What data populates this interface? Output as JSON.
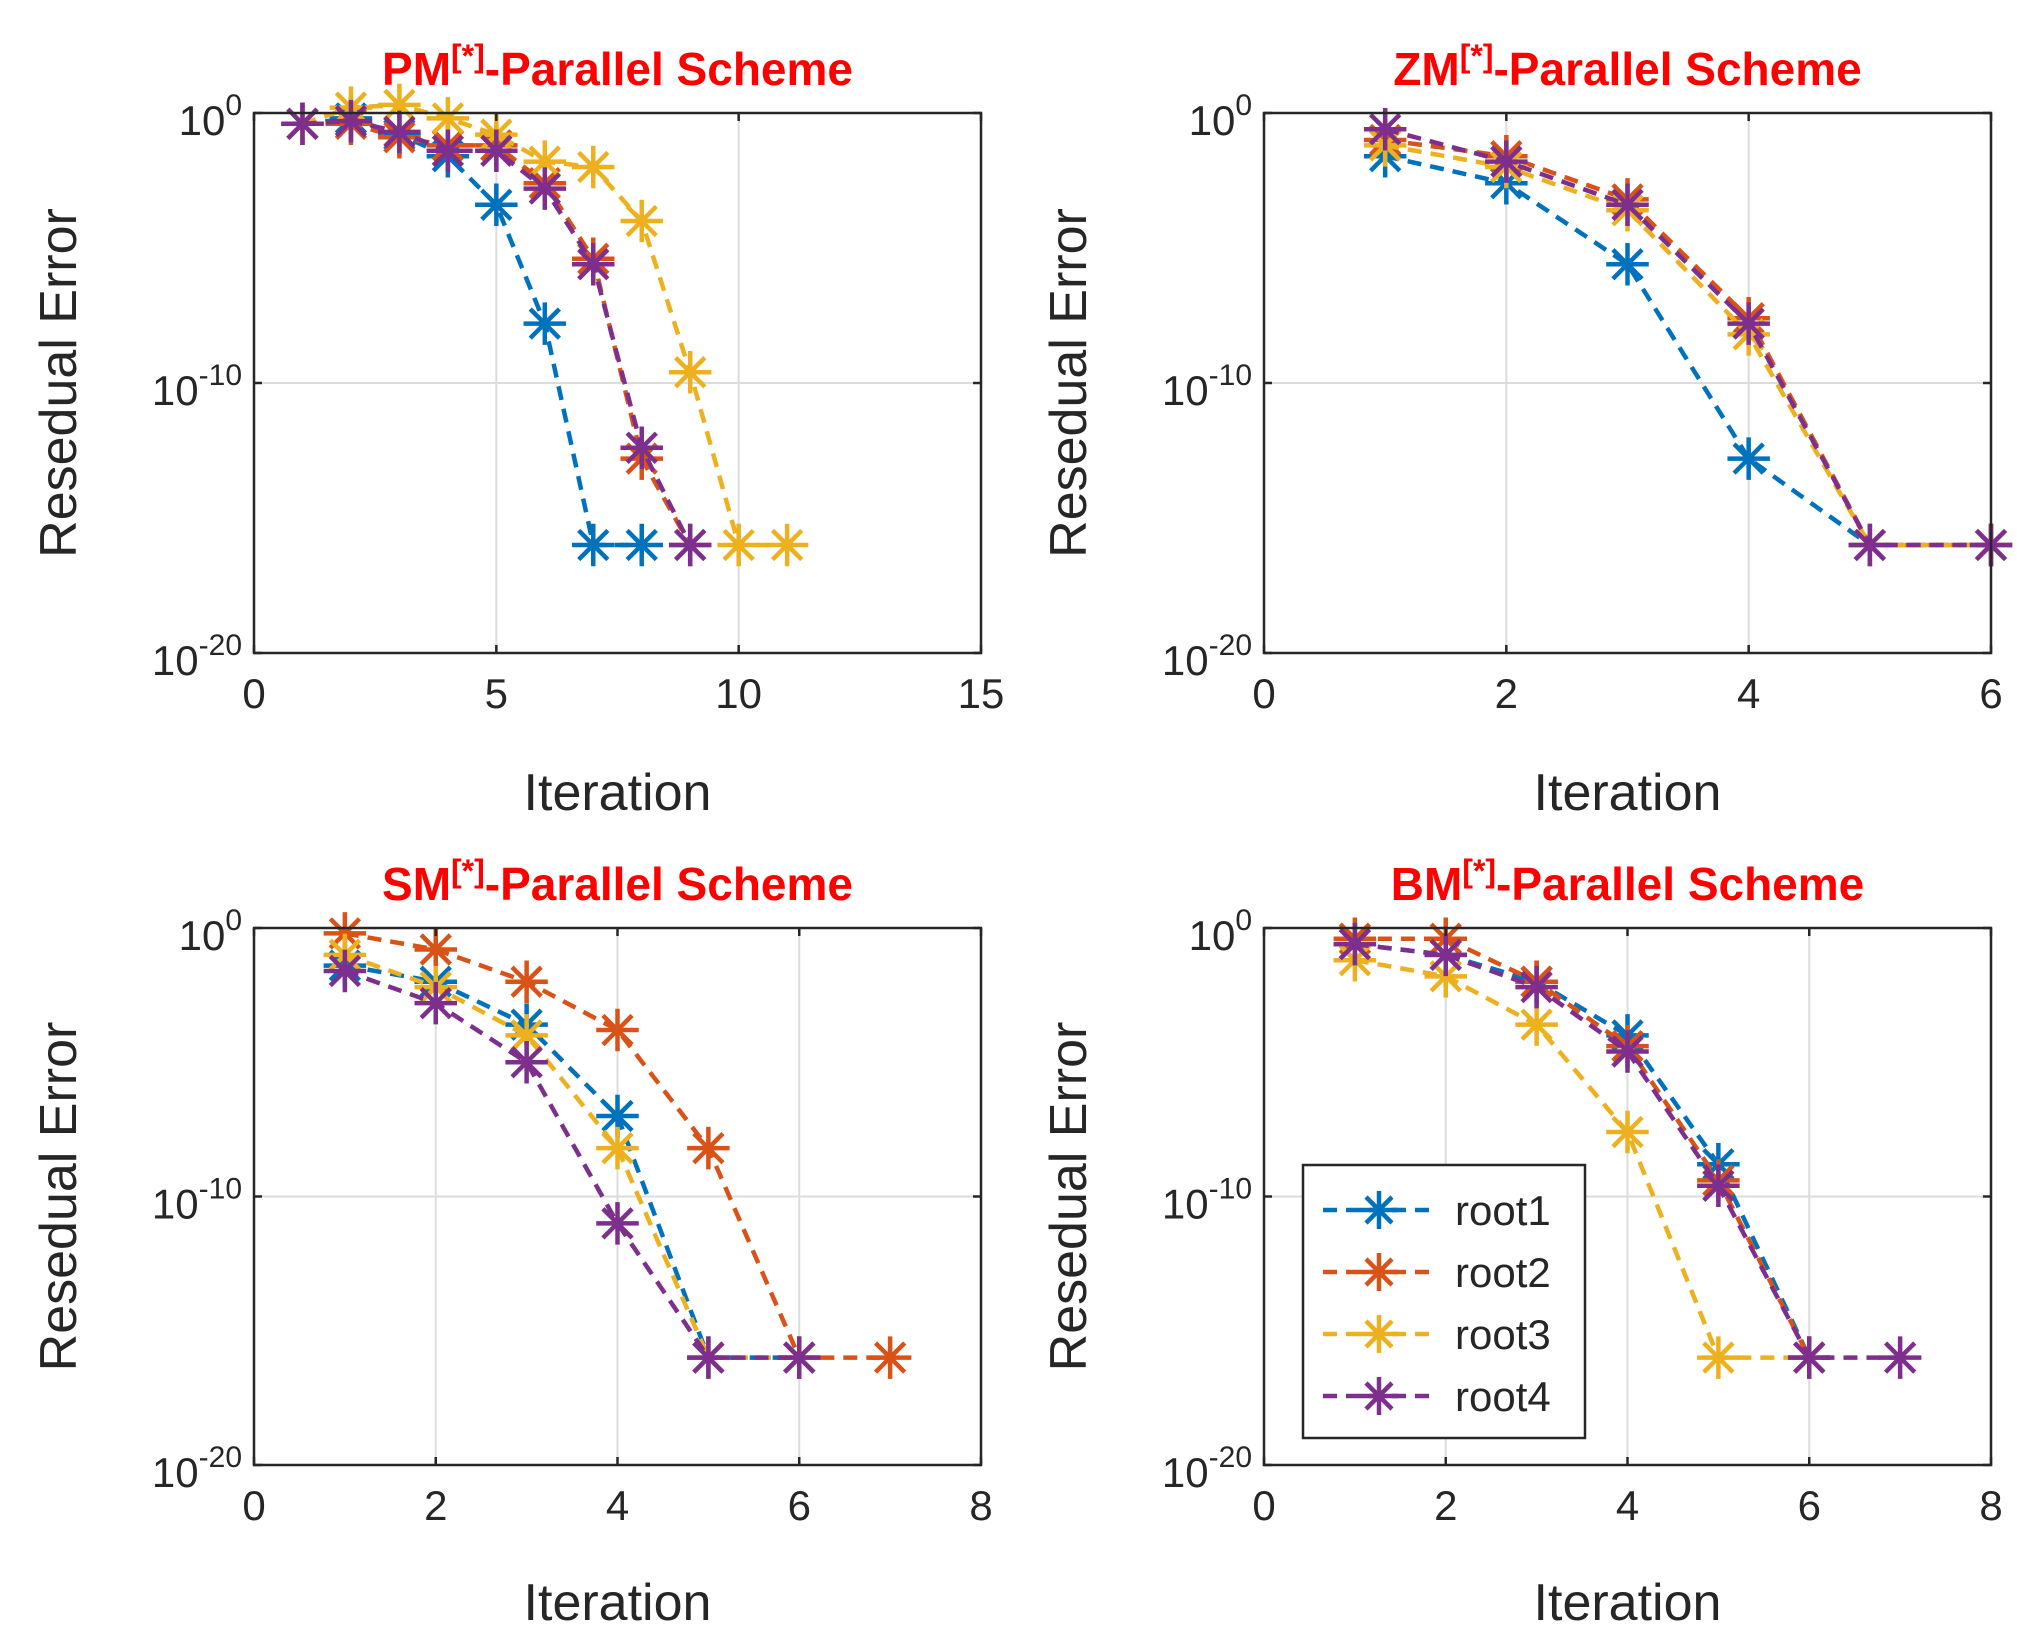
{
  "figure": {
    "title_color": "#ff0000",
    "series_colors": {
      "root1": "#0072BD",
      "root2": "#D95319",
      "root3": "#EDB120",
      "root4": "#7E2F8E"
    }
  },
  "chart_data": [
    {
      "type": "line",
      "id": "pm",
      "title_main": "PM",
      "title_sup": "[*]",
      "title_rest": "-Parallel Scheme",
      "xlabel": "Iteration",
      "ylabel": "Resedual Error",
      "yscale": "log",
      "xlim": [
        0,
        15
      ],
      "ylim_exp": [
        -20,
        0
      ],
      "xticks": [
        0,
        5,
        10,
        15
      ],
      "xtick_labels": [
        "0",
        "5",
        "10",
        "15"
      ],
      "yticks_exp": [
        0,
        -10,
        -20
      ],
      "ytick_base": "10",
      "ytick_exponents": [
        "0",
        "-10",
        "-20"
      ],
      "grid": true,
      "series": [
        {
          "name": "root1",
          "x": [
            1,
            2,
            3,
            4,
            5,
            6,
            7,
            8
          ],
          "log10_y": [
            -0.4,
            -0.2,
            -0.8,
            -1.6,
            -3.4,
            -7.8,
            -16,
            -16
          ]
        },
        {
          "name": "root2",
          "x": [
            1,
            2,
            3,
            4,
            5,
            6,
            7,
            8,
            9
          ],
          "log10_y": [
            -0.4,
            -0.4,
            -0.9,
            -1.2,
            -1.2,
            -2.6,
            -5.4,
            -12.8,
            -16
          ]
        },
        {
          "name": "root3",
          "x": [
            1,
            2,
            3,
            4,
            5,
            6,
            7,
            8,
            9,
            10,
            11
          ],
          "log10_y": [
            -0.4,
            0.2,
            0.3,
            -0.2,
            -0.8,
            -1.8,
            -2.0,
            -4.0,
            -9.6,
            -16,
            -16
          ]
        },
        {
          "name": "root4",
          "x": [
            1,
            2,
            3,
            4,
            5,
            6,
            7,
            8,
            9
          ],
          "log10_y": [
            -0.4,
            -0.3,
            -0.7,
            -1.4,
            -1.4,
            -2.8,
            -5.6,
            -12.4,
            -16
          ]
        }
      ]
    },
    {
      "type": "line",
      "id": "zm",
      "title_main": "ZM",
      "title_sup": "[*]",
      "title_rest": "-Parallel Scheme",
      "xlabel": "Iteration",
      "ylabel": "Resedual Error",
      "yscale": "log",
      "xlim": [
        0,
        6
      ],
      "ylim_exp": [
        -20,
        0
      ],
      "xticks": [
        0,
        2,
        4,
        6
      ],
      "xtick_labels": [
        "0",
        "2",
        "4",
        "6"
      ],
      "yticks_exp": [
        0,
        -10,
        -20
      ],
      "ytick_base": "10",
      "ytick_exponents": [
        "0",
        "-10",
        "-20"
      ],
      "grid": true,
      "series": [
        {
          "name": "root1",
          "x": [
            1,
            2,
            3,
            4,
            5,
            6
          ],
          "log10_y": [
            -1.6,
            -2.6,
            -5.6,
            -12.8,
            -16,
            -16
          ]
        },
        {
          "name": "root2",
          "x": [
            1,
            2,
            3,
            4,
            5,
            6
          ],
          "log10_y": [
            -1.0,
            -1.6,
            -3.2,
            -7.6,
            -16,
            -16
          ]
        },
        {
          "name": "root3",
          "x": [
            1,
            2,
            3,
            4,
            5,
            6
          ],
          "log10_y": [
            -1.2,
            -2.0,
            -3.6,
            -8.2,
            -16,
            -16
          ]
        },
        {
          "name": "root4",
          "x": [
            1,
            2,
            3,
            4,
            5,
            6
          ],
          "log10_y": [
            -0.6,
            -1.8,
            -3.4,
            -7.8,
            -16,
            -16
          ]
        }
      ]
    },
    {
      "type": "line",
      "id": "sm",
      "title_main": "SM",
      "title_sup": "[*]",
      "title_rest": "-Parallel Scheme",
      "xlabel": "Iteration",
      "ylabel": "Resedual Error",
      "yscale": "log",
      "xlim": [
        0,
        8
      ],
      "ylim_exp": [
        -20,
        0
      ],
      "xticks": [
        0,
        2,
        4,
        6,
        8
      ],
      "xtick_labels": [
        "0",
        "2",
        "4",
        "6",
        "8"
      ],
      "yticks_exp": [
        0,
        -10,
        -20
      ],
      "ytick_base": "10",
      "ytick_exponents": [
        "0",
        "-10",
        "-20"
      ],
      "grid": true,
      "series": [
        {
          "name": "root1",
          "x": [
            1,
            2,
            3,
            4,
            5,
            6
          ],
          "log10_y": [
            -1.4,
            -2.0,
            -3.6,
            -7.0,
            -16,
            -16
          ]
        },
        {
          "name": "root2",
          "x": [
            1,
            2,
            3,
            4,
            5,
            6,
            7
          ],
          "log10_y": [
            -0.2,
            -0.8,
            -2.0,
            -3.8,
            -8.2,
            -16,
            -16
          ]
        },
        {
          "name": "root3",
          "x": [
            1,
            2,
            3,
            4,
            5,
            6
          ],
          "log10_y": [
            -1.0,
            -2.2,
            -4.0,
            -8.2,
            -16,
            -16
          ]
        },
        {
          "name": "root4",
          "x": [
            1,
            2,
            3,
            4,
            5,
            6
          ],
          "log10_y": [
            -1.6,
            -2.8,
            -5.0,
            -11.0,
            -16,
            -16
          ]
        }
      ]
    },
    {
      "type": "line",
      "id": "bm",
      "title_main": "BM",
      "title_sup": "[*]",
      "title_rest": "-Parallel Scheme",
      "xlabel": "Iteration",
      "ylabel": "Resedual Error",
      "yscale": "log",
      "xlim": [
        0,
        8
      ],
      "ylim_exp": [
        -20,
        0
      ],
      "xticks": [
        0,
        2,
        4,
        6,
        8
      ],
      "xtick_labels": [
        "0",
        "2",
        "4",
        "6",
        "8"
      ],
      "yticks_exp": [
        0,
        -10,
        -20
      ],
      "ytick_base": "10",
      "ytick_exponents": [
        "0",
        "-10",
        "-20"
      ],
      "grid": true,
      "legend": {
        "location": "bottom-left",
        "entries": [
          "root1",
          "root2",
          "root3",
          "root4"
        ]
      },
      "series": [
        {
          "name": "root1",
          "x": [
            1,
            2,
            3,
            4,
            5,
            6
          ],
          "log10_y": [
            -0.6,
            -1.0,
            -2.0,
            -4.0,
            -8.8,
            -16
          ]
        },
        {
          "name": "root2",
          "x": [
            1,
            2,
            3,
            4,
            5,
            6
          ],
          "log10_y": [
            -0.4,
            -0.4,
            -2.0,
            -4.4,
            -9.4,
            -16
          ]
        },
        {
          "name": "root3",
          "x": [
            1,
            2,
            3,
            4,
            5,
            6
          ],
          "log10_y": [
            -1.2,
            -1.8,
            -3.6,
            -7.6,
            -16,
            -16
          ]
        },
        {
          "name": "root4",
          "x": [
            1,
            2,
            3,
            4,
            5,
            6,
            7
          ],
          "log10_y": [
            -0.6,
            -1.0,
            -2.2,
            -4.6,
            -9.6,
            -16,
            -16
          ]
        }
      ]
    }
  ]
}
